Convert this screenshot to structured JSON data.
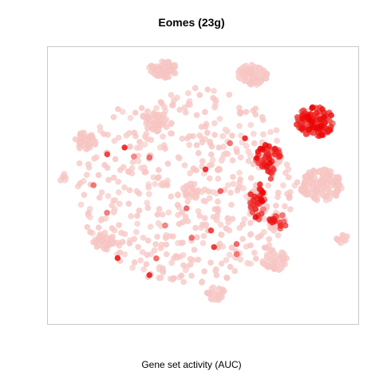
{
  "chart_data": {
    "type": "scatter",
    "title": "Eomes (23g)",
    "subtitle": "",
    "xlabel": "Gene set activity (AUC)",
    "ylabel": "",
    "axes_visible": false,
    "grid": false,
    "legend": "none",
    "colors": {
      "low": "#f9d6d3",
      "high": "#f00000",
      "frame": "#c8c8c8"
    },
    "xlim": [
      0,
      100
    ],
    "ylim": [
      0,
      100
    ],
    "clusters": [
      {
        "cx": 37,
        "cy": 92,
        "rx": 4.5,
        "ry": 3.2,
        "n": 70,
        "high_frac": 0.0
      },
      {
        "cx": 66,
        "cy": 90,
        "rx": 4.8,
        "ry": 3.8,
        "n": 80,
        "high_frac": 0.0
      },
      {
        "cx": 35,
        "cy": 73,
        "rx": 3.8,
        "ry": 3.5,
        "n": 55,
        "high_frac": 0.0
      },
      {
        "cx": 12,
        "cy": 66,
        "rx": 3.5,
        "ry": 3.2,
        "n": 50,
        "high_frac": 0.0
      },
      {
        "cx": 86,
        "cy": 73,
        "rx": 6.0,
        "ry": 5.5,
        "n": 140,
        "high_frac": 0.85
      },
      {
        "cx": 88,
        "cy": 50,
        "rx": 6.8,
        "ry": 6.0,
        "n": 150,
        "high_frac": 0.0
      },
      {
        "cx": 71,
        "cy": 60,
        "rx": 4.0,
        "ry": 6.0,
        "n": 70,
        "high_frac": 0.7
      },
      {
        "cx": 68,
        "cy": 44,
        "rx": 3.0,
        "ry": 7.0,
        "n": 55,
        "high_frac": 0.6
      },
      {
        "cx": 74,
        "cy": 37,
        "rx": 3.0,
        "ry": 2.8,
        "n": 30,
        "high_frac": 0.5
      },
      {
        "cx": 18,
        "cy": 30,
        "rx": 3.5,
        "ry": 3.0,
        "n": 40,
        "high_frac": 0.0
      },
      {
        "cx": 73,
        "cy": 23,
        "rx": 4.0,
        "ry": 3.8,
        "n": 50,
        "high_frac": 0.0
      },
      {
        "cx": 54,
        "cy": 11,
        "rx": 3.0,
        "ry": 2.5,
        "n": 25,
        "high_frac": 0.0
      },
      {
        "cx": 46,
        "cy": 48,
        "rx": 3.0,
        "ry": 2.8,
        "n": 25,
        "high_frac": 0.0
      },
      {
        "cx": 95,
        "cy": 31,
        "rx": 2.0,
        "ry": 2.0,
        "n": 15,
        "high_frac": 0.0
      },
      {
        "cx": 5,
        "cy": 53,
        "rx": 1.5,
        "ry": 1.5,
        "n": 8,
        "high_frac": 0.0
      }
    ],
    "scatter_region": {
      "cx": 45,
      "cy": 50,
      "rx": 36,
      "ry": 36,
      "n": 520,
      "high_frac": 0.03
    }
  }
}
